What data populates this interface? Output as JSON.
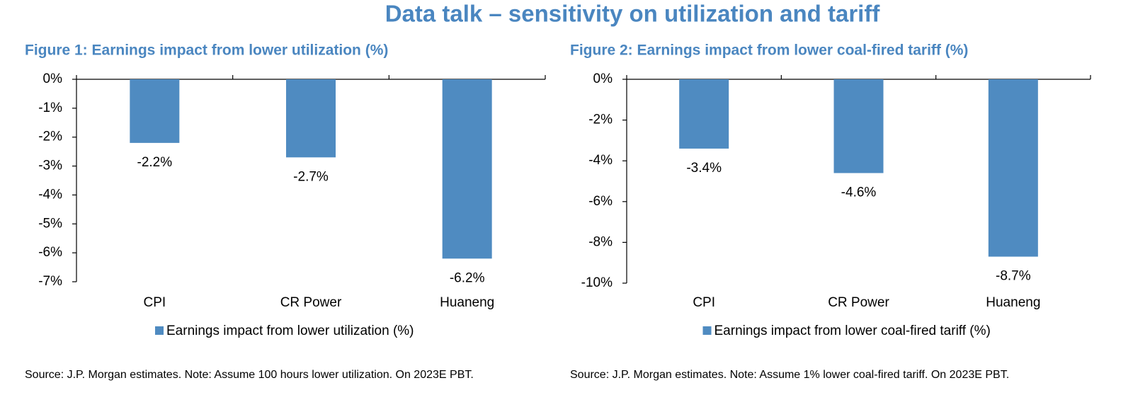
{
  "title": "Data talk – sensitivity on utilization and tariff",
  "chart_data": [
    {
      "type": "bar",
      "title": "Figure 1: Earnings impact from lower utilization (%)",
      "categories": [
        "CPI",
        "CR Power",
        "Huaneng"
      ],
      "series": [
        {
          "name": "Earnings impact from lower utilization (%)",
          "color": "#4f8bc1",
          "values": [
            -2.2,
            -2.7,
            -6.2
          ],
          "value_labels": [
            "-2.2%",
            "-2.7%",
            "-6.2%"
          ]
        }
      ],
      "ylim": [
        -7,
        0
      ],
      "yticks": [
        {
          "value": 0,
          "label": "0%"
        },
        {
          "value": -1,
          "label": "-1%"
        },
        {
          "value": -2,
          "label": "-2%"
        },
        {
          "value": -3,
          "label": "-3%"
        },
        {
          "value": -4,
          "label": "-4%"
        },
        {
          "value": -5,
          "label": "-5%"
        },
        {
          "value": -6,
          "label": "-6%"
        },
        {
          "value": -7,
          "label": "-7%"
        }
      ],
      "legend": "bottom",
      "note": "Source: J.P. Morgan estimates. Note: Assume 100 hours lower utilization. On 2023E PBT."
    },
    {
      "type": "bar",
      "title": "Figure 2: Earnings impact from lower coal-fired tariff (%)",
      "categories": [
        "CPI",
        "CR Power",
        "Huaneng"
      ],
      "series": [
        {
          "name": "Earnings impact from lower coal-fired tariff (%)",
          "color": "#4f8bc1",
          "values": [
            -3.4,
            -4.6,
            -8.7
          ],
          "value_labels": [
            "-3.4%",
            "-4.6%",
            "-8.7%"
          ]
        }
      ],
      "ylim": [
        -10,
        0
      ],
      "yticks": [
        {
          "value": 0,
          "label": "0%"
        },
        {
          "value": -2,
          "label": "-2%"
        },
        {
          "value": -4,
          "label": "-4%"
        },
        {
          "value": -6,
          "label": "-6%"
        },
        {
          "value": -8,
          "label": "-8%"
        },
        {
          "value": -10,
          "label": "-10%"
        }
      ],
      "legend": "bottom",
      "note": "Source: J.P. Morgan estimates. Note: Assume 1% lower coal-fired tariff. On 2023E PBT."
    }
  ]
}
